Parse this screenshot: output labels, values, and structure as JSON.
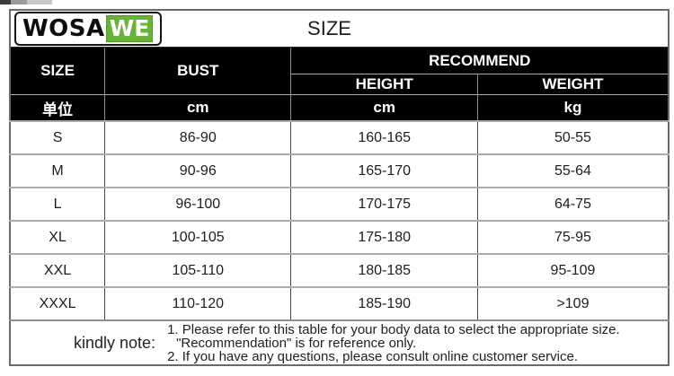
{
  "brand": {
    "logo_black": "WOSA",
    "logo_green": "WE"
  },
  "title": "SIZE",
  "header": {
    "size": "SIZE",
    "bust": "BUST",
    "recommend": "RECOMMEND",
    "height": "HEIGHT",
    "weight": "WEIGHT",
    "unit_label": "单位",
    "bust_unit": "cm",
    "height_unit": "cm",
    "weight_unit": "kg"
  },
  "rows": [
    {
      "size": "S",
      "bust": "86-90",
      "height": "160-165",
      "weight": "50-55"
    },
    {
      "size": "M",
      "bust": "90-96",
      "height": "165-170",
      "weight": "55-64"
    },
    {
      "size": "L",
      "bust": "96-100",
      "height": "170-175",
      "weight": "64-75"
    },
    {
      "size": "XL",
      "bust": "100-105",
      "height": "175-180",
      "weight": "75-95"
    },
    {
      "size": "XXL",
      "bust": "105-110",
      "height": "180-185",
      "weight": "95-109"
    },
    {
      "size": "XXXL",
      "bust": "110-120",
      "height": "185-190",
      "weight": ">109"
    }
  ],
  "note": {
    "label": "kindly note:",
    "line1": "1. Please refer to this table for your body data to select the appropriate size.",
    "line2": "\"Recommendation\" is for reference only.",
    "line3": "2. If you have any questions, please consult online customer service."
  },
  "colors": {
    "brand_green": "#67b437",
    "header_bg": "#000000",
    "header_text": "#ffffff"
  },
  "chart_data": {
    "type": "table",
    "title": "SIZE",
    "columns": [
      "SIZE",
      "BUST (cm)",
      "HEIGHT (cm)",
      "WEIGHT (kg)"
    ],
    "rows": [
      [
        "S",
        "86-90",
        "160-165",
        "50-55"
      ],
      [
        "M",
        "90-96",
        "165-170",
        "55-64"
      ],
      [
        "L",
        "96-100",
        "170-175",
        "64-75"
      ],
      [
        "XL",
        "100-105",
        "175-180",
        "75-95"
      ],
      [
        "XXL",
        "105-110",
        "180-185",
        "95-109"
      ],
      [
        "XXXL",
        "110-120",
        "185-190",
        ">109"
      ]
    ]
  }
}
